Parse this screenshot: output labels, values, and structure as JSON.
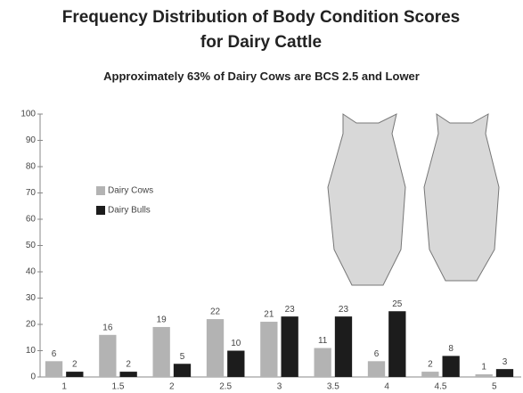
{
  "chart_data": {
    "type": "bar",
    "title": "Frequency Distribution of Body Condition Scores for Dairy Cattle",
    "subtitle": "Approximately 63% of Dairy Cows are BCS 2.5 and Lower",
    "categories": [
      "1",
      "1.5",
      "2",
      "2.5",
      "3",
      "3.5",
      "4",
      "4.5",
      "5"
    ],
    "series": [
      {
        "name": "Dairy Cows",
        "color": "#b3b3b3",
        "values": [
          6,
          16,
          19,
          22,
          21,
          11,
          6,
          2,
          1
        ]
      },
      {
        "name": "Dairy Bulls",
        "color": "#1c1c1c",
        "values": [
          2,
          2,
          5,
          10,
          23,
          23,
          25,
          8,
          3
        ]
      }
    ],
    "ylim": [
      0,
      100
    ],
    "yticks": [
      0,
      10,
      20,
      30,
      40,
      50,
      60,
      70,
      80,
      90,
      100
    ],
    "grid": false
  }
}
